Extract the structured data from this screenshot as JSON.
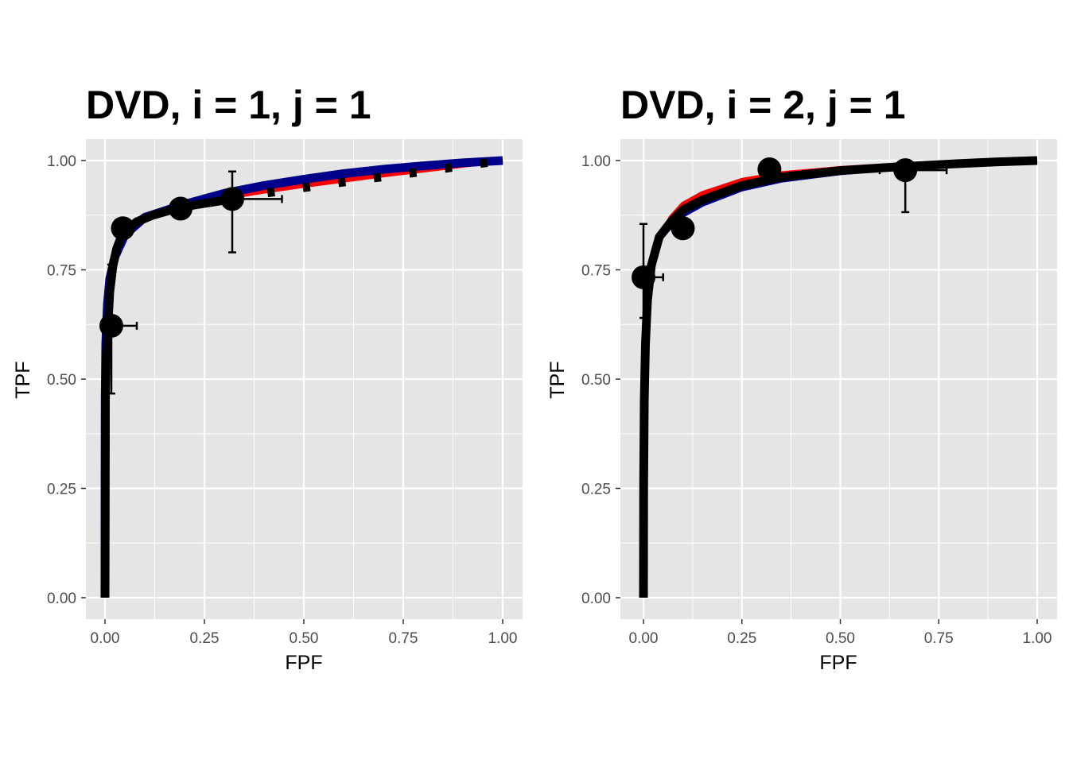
{
  "chart_data": [
    {
      "type": "line",
      "title": "DVD, i = 1, j = 1",
      "xlabel": "FPF",
      "ylabel": "TPF",
      "xlim": [
        0,
        1
      ],
      "ylim": [
        0,
        1
      ],
      "xticks": [
        "0.00",
        "0.25",
        "0.50",
        "0.75",
        "1.00"
      ],
      "yticks": [
        "0.00",
        "0.25",
        "0.50",
        "0.75",
        "1.00"
      ],
      "grid": true,
      "colors": {
        "panel": "#e5e5e5",
        "grid": "#ffffff",
        "red": "#ff0000",
        "blue": "#00008b",
        "black": "#000000"
      },
      "series": [
        {
          "color": "red",
          "style": "solid",
          "width": "medium",
          "x": [
            0,
            0.0005,
            0.002,
            0.006,
            0.012,
            0.025,
            0.05,
            0.1,
            0.2,
            0.3,
            0.4,
            0.5,
            0.6,
            0.7,
            0.8,
            0.9,
            1
          ],
          "y": [
            0,
            0.5,
            0.62,
            0.7,
            0.75,
            0.8,
            0.845,
            0.875,
            0.898,
            0.915,
            0.93,
            0.943,
            0.955,
            0.967,
            0.978,
            0.989,
            1
          ]
        },
        {
          "color": "blue",
          "style": "solid",
          "width": "thick",
          "x": [
            0,
            0.0005,
            0.002,
            0.006,
            0.012,
            0.025,
            0.05,
            0.1,
            0.2,
            0.3,
            0.4,
            0.5,
            0.6,
            0.7,
            0.8,
            0.9,
            1
          ],
          "y": [
            0,
            0.45,
            0.58,
            0.67,
            0.73,
            0.78,
            0.83,
            0.87,
            0.9,
            0.925,
            0.943,
            0.957,
            0.97,
            0.98,
            0.988,
            0.995,
            1
          ]
        },
        {
          "color": "black",
          "style": "solid",
          "width": "thick",
          "x": [
            0,
            0.001,
            0.003,
            0.006,
            0.012,
            0.02,
            0.03,
            0.045,
            0.08,
            0.12,
            0.19,
            0.25,
            0.32
          ],
          "y": [
            0,
            0.45,
            0.55,
            0.6,
            0.7,
            0.76,
            0.8,
            0.835,
            0.86,
            0.875,
            0.893,
            0.902,
            0.912
          ]
        },
        {
          "color": "black",
          "style": "dashed",
          "width": "thick",
          "x": [
            0.32,
            0.4,
            0.5,
            0.6,
            0.7,
            0.8,
            0.9,
            1
          ],
          "y": [
            0.912,
            0.925,
            0.938,
            0.951,
            0.963,
            0.975,
            0.988,
            1
          ]
        }
      ],
      "points": [
        {
          "x": 0.016,
          "y": 0.622,
          "xerr": [
            0,
            0.08
          ],
          "yerr": [
            0.467,
            0.762
          ]
        },
        {
          "x": 0.045,
          "y": 0.845,
          "xerr": null,
          "yerr": null
        },
        {
          "x": 0.19,
          "y": 0.89,
          "xerr": [
            0.19,
            0.215
          ],
          "yerr": null
        },
        {
          "x": 0.32,
          "y": 0.912,
          "xerr": [
            0.3,
            0.445
          ],
          "yerr": [
            0.79,
            0.975
          ]
        }
      ]
    },
    {
      "type": "line",
      "title": "DVD, i = 2, j = 1",
      "xlabel": "FPF",
      "ylabel": "TPF",
      "xlim": [
        0,
        1
      ],
      "ylim": [
        0,
        1
      ],
      "xticks": [
        "0.00",
        "0.25",
        "0.50",
        "0.75",
        "1.00"
      ],
      "yticks": [
        "0.00",
        "0.25",
        "0.50",
        "0.75",
        "1.00"
      ],
      "grid": true,
      "colors": {
        "panel": "#e5e5e5",
        "grid": "#ffffff",
        "red": "#ff0000",
        "blue": "#00008b",
        "black": "#000000"
      },
      "series": [
        {
          "color": "red",
          "style": "solid",
          "width": "medium",
          "x": [
            0,
            0.0005,
            0.002,
            0.005,
            0.01,
            0.02,
            0.04,
            0.07,
            0.1,
            0.15,
            0.25,
            0.35,
            0.5,
            0.65,
            0.8,
            0.9,
            1
          ],
          "y": [
            0,
            0.15,
            0.35,
            0.52,
            0.64,
            0.74,
            0.82,
            0.87,
            0.9,
            0.925,
            0.955,
            0.97,
            0.982,
            0.99,
            0.995,
            0.998,
            1
          ]
        },
        {
          "color": "blue",
          "style": "solid",
          "width": "medium",
          "x": [
            0,
            0.0005,
            0.002,
            0.005,
            0.01,
            0.02,
            0.04,
            0.07,
            0.1,
            0.15,
            0.25,
            0.35,
            0.5,
            0.65,
            0.8,
            0.9,
            1
          ],
          "y": [
            0,
            0.3,
            0.5,
            0.62,
            0.7,
            0.77,
            0.82,
            0.85,
            0.875,
            0.9,
            0.935,
            0.955,
            0.972,
            0.983,
            0.992,
            0.996,
            1
          ]
        },
        {
          "color": "black",
          "style": "solid",
          "width": "thick",
          "x": [
            0,
            0.0005,
            0.002,
            0.005,
            0.01,
            0.02,
            0.04,
            0.07,
            0.1,
            0.15,
            0.25,
            0.35,
            0.5,
            0.65,
            0.8,
            0.9,
            1
          ],
          "y": [
            0,
            0.25,
            0.45,
            0.58,
            0.68,
            0.76,
            0.825,
            0.86,
            0.887,
            0.91,
            0.943,
            0.962,
            0.977,
            0.986,
            0.993,
            0.997,
            1
          ]
        }
      ],
      "points": [
        {
          "x": 0.0,
          "y": 0.733,
          "xerr": [
            0,
            0.05
          ],
          "yerr": [
            0.64,
            0.855
          ]
        },
        {
          "x": 0.1,
          "y": 0.845,
          "xerr": null,
          "yerr": null
        },
        {
          "x": 0.32,
          "y": 0.98,
          "xerr": null,
          "yerr": null
        },
        {
          "x": 0.665,
          "y": 0.978,
          "xerr": [
            0.6,
            0.77
          ],
          "yerr": [
            0.882,
            0.99
          ]
        }
      ]
    }
  ]
}
